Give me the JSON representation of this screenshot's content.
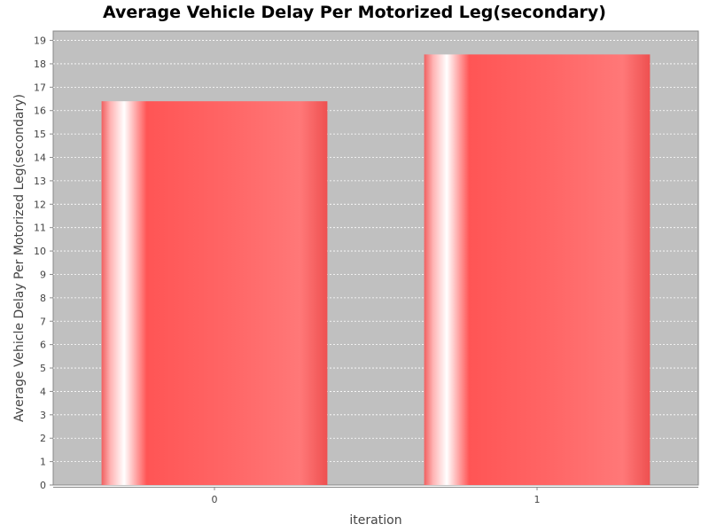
{
  "chart_data": {
    "type": "bar",
    "title": "Average Vehicle Delay Per Motorized Leg(secondary)",
    "xlabel": "iteration",
    "ylabel": "Average Vehicle Delay Per Motorized Leg(secondary)",
    "categories": [
      "0",
      "1"
    ],
    "values": [
      16.4,
      18.4
    ],
    "ylim": [
      0,
      19.4
    ],
    "yticks": [
      0,
      1,
      2,
      3,
      4,
      5,
      6,
      7,
      8,
      9,
      10,
      11,
      12,
      13,
      14,
      15,
      16,
      17,
      18,
      19
    ],
    "grid": true,
    "legend": "none"
  },
  "colors": {
    "plot_background": "#c0c0c0",
    "gridline": "#ffffff",
    "bar_base": "#ff5555",
    "bar_highlight": "#ffffff"
  }
}
